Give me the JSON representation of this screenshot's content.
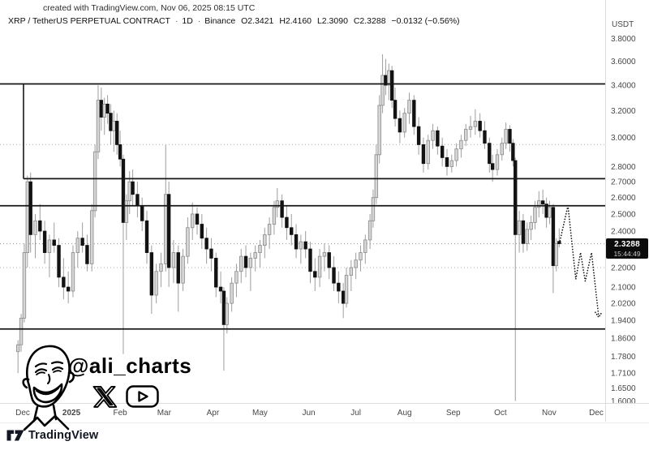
{
  "header": {
    "credit": "created with TradingView.com, Nov 06, 2025 08:15 UTC",
    "symbol": "XRP / TetherUS PERPETUAL CONTRACT",
    "sep": "·",
    "interval": "1D",
    "exchange": "Binance",
    "open": "O2.3421",
    "high": "H2.4160",
    "low": "L2.3090",
    "close": "C2.3288",
    "change": "−0.0132 (−0.56%)"
  },
  "price_axis": {
    "currency": "USDT",
    "ticks": [
      "3.8000",
      "3.6000",
      "3.4000",
      "3.2000",
      "3.0000",
      "2.8000",
      "2.7000",
      "2.6000",
      "2.5000",
      "2.4000",
      "2.2000",
      "2.1000",
      "2.0200",
      "1.9400",
      "1.8600",
      "1.7800",
      "1.7100",
      "1.6500",
      "1.6000"
    ],
    "last_price_label": "2.3288",
    "countdown": "15:44:49"
  },
  "time_axis": {
    "labels": [
      {
        "text": "Dec",
        "day": 0,
        "bold": false
      },
      {
        "text": "2025",
        "day": 31,
        "bold": true
      },
      {
        "text": "Feb",
        "day": 62,
        "bold": false
      },
      {
        "text": "Mar",
        "day": 90,
        "bold": false
      },
      {
        "text": "Apr",
        "day": 121,
        "bold": false
      },
      {
        "text": "May",
        "day": 151,
        "bold": false
      },
      {
        "text": "Jun",
        "day": 182,
        "bold": false
      },
      {
        "text": "Jul",
        "day": 212,
        "bold": false
      },
      {
        "text": "Aug",
        "day": 243,
        "bold": false
      },
      {
        "text": "Sep",
        "day": 274,
        "bold": false
      },
      {
        "text": "Oct",
        "day": 304,
        "bold": false
      },
      {
        "text": "Nov",
        "day": 335,
        "bold": false
      },
      {
        "text": "Dec",
        "day": 365,
        "bold": false
      }
    ]
  },
  "watermark": {
    "handle": "@ali_charts"
  },
  "brand": {
    "logo_text": "TradingView"
  },
  "colors": {
    "up_fill": "#d6d6d6",
    "up_stroke": "#8a8a8a",
    "down_fill": "#121212",
    "wick": "#9e9e9e",
    "level_solid": "#161616",
    "level_dotted": "#bcbcbc",
    "current_dotted": "#9a9a9a",
    "axis_text": "#474747",
    "badge_bg": "#0b0b0b"
  },
  "chart_data": {
    "type": "candlestick",
    "title": "XRP / TetherUS PERPETUAL CONTRACT 1D (Binance)",
    "scale": "log",
    "x_unit": "days since 2024-12-01",
    "visible_price_range": [
      1.55,
      3.85
    ],
    "last_close": 2.3288,
    "candles": [
      [
        -3,
        1.8,
        1.85,
        1.71,
        1.83
      ],
      [
        -1,
        1.83,
        1.97,
        1.8,
        1.95
      ],
      [
        1,
        1.95,
        2.33,
        1.93,
        2.28
      ],
      [
        3,
        2.28,
        2.74,
        2.2,
        2.7
      ],
      [
        5,
        2.7,
        2.76,
        2.28,
        2.38
      ],
      [
        8,
        2.38,
        2.5,
        2.25,
        2.46
      ],
      [
        11,
        2.46,
        2.56,
        2.35,
        2.4
      ],
      [
        14,
        2.4,
        2.46,
        2.22,
        2.28
      ],
      [
        17,
        2.28,
        2.38,
        2.15,
        2.35
      ],
      [
        20,
        2.35,
        2.45,
        2.28,
        2.32
      ],
      [
        23,
        2.32,
        2.36,
        2.1,
        2.15
      ],
      [
        26,
        2.15,
        2.25,
        2.04,
        2.1
      ],
      [
        29,
        2.1,
        2.18,
        2.02,
        2.08
      ],
      [
        32,
        2.08,
        2.32,
        2.05,
        2.28
      ],
      [
        35,
        2.28,
        2.4,
        2.2,
        2.36
      ],
      [
        38,
        2.36,
        2.45,
        2.28,
        2.32
      ],
      [
        41,
        2.32,
        2.38,
        2.18,
        2.22
      ],
      [
        44,
        2.22,
        2.56,
        2.18,
        2.52
      ],
      [
        46,
        2.52,
        2.95,
        2.48,
        2.9
      ],
      [
        48,
        2.9,
        3.4,
        2.85,
        3.28
      ],
      [
        50,
        3.28,
        3.38,
        3.05,
        3.15
      ],
      [
        52,
        3.15,
        3.3,
        3.02,
        3.25
      ],
      [
        54,
        3.25,
        3.32,
        3.1,
        3.18
      ],
      [
        56,
        3.18,
        3.25,
        2.95,
        3.05
      ],
      [
        58,
        3.05,
        3.2,
        2.9,
        3.12
      ],
      [
        60,
        3.12,
        3.18,
        2.88,
        2.95
      ],
      [
        62,
        2.95,
        3.05,
        2.8,
        2.85
      ],
      [
        64,
        2.85,
        2.88,
        1.79,
        2.45
      ],
      [
        66,
        2.45,
        2.62,
        2.35,
        2.58
      ],
      [
        68,
        2.58,
        2.77,
        2.5,
        2.7
      ],
      [
        70,
        2.7,
        2.78,
        2.55,
        2.62
      ],
      [
        73,
        2.62,
        2.7,
        2.48,
        2.55
      ],
      [
        76,
        2.55,
        2.6,
        2.4,
        2.46
      ],
      [
        79,
        2.46,
        2.52,
        2.22,
        2.28
      ],
      [
        82,
        2.28,
        2.32,
        1.97,
        2.06
      ],
      [
        85,
        2.06,
        2.22,
        2.02,
        2.18
      ],
      [
        88,
        2.18,
        2.28,
        2.1,
        2.22
      ],
      [
        91,
        2.22,
        2.95,
        2.18,
        2.62
      ],
      [
        93,
        2.62,
        2.7,
        2.1,
        2.2
      ],
      [
        96,
        2.2,
        2.35,
        2.12,
        2.28
      ],
      [
        99,
        2.28,
        2.32,
        1.98,
        2.12
      ],
      [
        102,
        2.12,
        2.3,
        2.08,
        2.26
      ],
      [
        105,
        2.26,
        2.48,
        2.22,
        2.42
      ],
      [
        108,
        2.42,
        2.57,
        2.35,
        2.5
      ],
      [
        111,
        2.5,
        2.54,
        2.38,
        2.44
      ],
      [
        114,
        2.44,
        2.5,
        2.3,
        2.36
      ],
      [
        117,
        2.36,
        2.42,
        2.22,
        2.3
      ],
      [
        120,
        2.3,
        2.36,
        2.18,
        2.25
      ],
      [
        123,
        2.25,
        2.28,
        2.05,
        2.1
      ],
      [
        126,
        2.1,
        2.18,
        2.02,
        2.08
      ],
      [
        128,
        2.08,
        2.1,
        1.72,
        1.92
      ],
      [
        130,
        1.92,
        2.05,
        1.88,
        2.02
      ],
      [
        133,
        2.02,
        2.15,
        1.98,
        2.12
      ],
      [
        136,
        2.12,
        2.22,
        2.05,
        2.18
      ],
      [
        139,
        2.18,
        2.3,
        2.12,
        2.26
      ],
      [
        142,
        2.26,
        2.32,
        2.15,
        2.2
      ],
      [
        145,
        2.2,
        2.28,
        2.08,
        2.25
      ],
      [
        148,
        2.25,
        2.32,
        2.18,
        2.28
      ],
      [
        151,
        2.28,
        2.35,
        2.2,
        2.32
      ],
      [
        154,
        2.32,
        2.42,
        2.25,
        2.38
      ],
      [
        157,
        2.38,
        2.48,
        2.3,
        2.44
      ],
      [
        160,
        2.44,
        2.58,
        2.38,
        2.54
      ],
      [
        162,
        2.54,
        2.66,
        2.48,
        2.58
      ],
      [
        165,
        2.58,
        2.62,
        2.42,
        2.48
      ],
      [
        168,
        2.48,
        2.55,
        2.35,
        2.42
      ],
      [
        171,
        2.42,
        2.5,
        2.32,
        2.38
      ],
      [
        174,
        2.38,
        2.44,
        2.25,
        2.3
      ],
      [
        177,
        2.3,
        2.38,
        2.22,
        2.34
      ],
      [
        180,
        2.34,
        2.4,
        2.25,
        2.3
      ],
      [
        183,
        2.3,
        2.34,
        2.12,
        2.18
      ],
      [
        186,
        2.18,
        2.25,
        2.08,
        2.15
      ],
      [
        189,
        2.15,
        2.3,
        2.1,
        2.26
      ],
      [
        192,
        2.26,
        2.33,
        2.18,
        2.28
      ],
      [
        195,
        2.28,
        2.32,
        2.14,
        2.2
      ],
      [
        198,
        2.2,
        2.26,
        2.08,
        2.12
      ],
      [
        201,
        2.12,
        2.18,
        2.02,
        2.08
      ],
      [
        204,
        2.08,
        2.12,
        1.95,
        2.02
      ],
      [
        206,
        2.02,
        2.2,
        2.0,
        2.16
      ],
      [
        209,
        2.16,
        2.24,
        2.08,
        2.2
      ],
      [
        212,
        2.2,
        2.28,
        2.14,
        2.24
      ],
      [
        215,
        2.24,
        2.32,
        2.18,
        2.28
      ],
      [
        218,
        2.28,
        2.38,
        2.22,
        2.35
      ],
      [
        221,
        2.35,
        2.5,
        2.3,
        2.46
      ],
      [
        223,
        2.46,
        2.65,
        2.42,
        2.6
      ],
      [
        225,
        2.6,
        2.95,
        2.56,
        2.88
      ],
      [
        227,
        2.88,
        3.32,
        2.82,
        3.24
      ],
      [
        229,
        3.24,
        3.66,
        3.18,
        3.48
      ],
      [
        231,
        3.48,
        3.62,
        3.32,
        3.4
      ],
      [
        233,
        3.4,
        3.58,
        3.28,
        3.52
      ],
      [
        235,
        3.52,
        3.56,
        3.22,
        3.28
      ],
      [
        237,
        3.28,
        3.38,
        3.08,
        3.14
      ],
      [
        240,
        3.14,
        3.2,
        2.96,
        3.04
      ],
      [
        243,
        3.04,
        3.22,
        3.0,
        3.18
      ],
      [
        246,
        3.18,
        3.34,
        3.1,
        3.28
      ],
      [
        249,
        3.28,
        3.32,
        3.02,
        3.08
      ],
      [
        252,
        3.08,
        3.15,
        2.88,
        2.95
      ],
      [
        255,
        2.95,
        3.0,
        2.76,
        2.82
      ],
      [
        258,
        2.82,
        3.02,
        2.78,
        2.98
      ],
      [
        261,
        2.98,
        3.1,
        2.92,
        3.05
      ],
      [
        264,
        3.05,
        3.08,
        2.88,
        2.94
      ],
      [
        267,
        2.94,
        3.0,
        2.8,
        2.86
      ],
      [
        270,
        2.86,
        2.92,
        2.74,
        2.8
      ],
      [
        273,
        2.8,
        2.88,
        2.76,
        2.84
      ],
      [
        276,
        2.84,
        2.96,
        2.8,
        2.92
      ],
      [
        279,
        2.92,
        3.02,
        2.86,
        2.98
      ],
      [
        282,
        2.98,
        3.1,
        2.94,
        3.06
      ],
      [
        285,
        3.06,
        3.16,
        3.0,
        3.08
      ],
      [
        288,
        3.08,
        3.21,
        3.02,
        3.12
      ],
      [
        291,
        3.12,
        3.18,
        3.0,
        3.05
      ],
      [
        294,
        3.05,
        3.12,
        2.92,
        2.96
      ],
      [
        297,
        2.96,
        3.0,
        2.76,
        2.82
      ],
      [
        299,
        2.82,
        2.88,
        2.7,
        2.78
      ],
      [
        302,
        2.78,
        2.92,
        2.74,
        2.88
      ],
      [
        305,
        2.88,
        3.0,
        2.84,
        2.96
      ],
      [
        307.5,
        2.96,
        3.11,
        2.92,
        3.06
      ],
      [
        310,
        3.06,
        3.09,
        2.9,
        2.96
      ],
      [
        312,
        2.96,
        2.99,
        2.8,
        2.84
      ],
      [
        313.5,
        2.84,
        2.86,
        1.6,
        2.38
      ],
      [
        316,
        2.38,
        2.52,
        2.28,
        2.46
      ],
      [
        318.5,
        2.46,
        2.5,
        2.28,
        2.33
      ],
      [
        321,
        2.33,
        2.45,
        2.29,
        2.41
      ],
      [
        323.5,
        2.41,
        2.49,
        2.35,
        2.45
      ],
      [
        326,
        2.45,
        2.58,
        2.41,
        2.54
      ],
      [
        328.5,
        2.54,
        2.64,
        2.48,
        2.58
      ],
      [
        331,
        2.58,
        2.65,
        2.5,
        2.56
      ],
      [
        333.3,
        2.56,
        2.6,
        2.42,
        2.48
      ],
      [
        335.3,
        2.48,
        2.58,
        2.44,
        2.54
      ],
      [
        337.6,
        2.54,
        2.56,
        2.07,
        2.21
      ],
      [
        339.6,
        2.21,
        2.36,
        2.18,
        2.33
      ],
      [
        341.4,
        2.342,
        2.416,
        2.309,
        2.329
      ]
    ],
    "levels": [
      {
        "price": 3.41,
        "style": "solid",
        "from_day": -16
      },
      {
        "price": 2.72,
        "style": "solid",
        "from_day": 0.5
      },
      {
        "price": 2.55,
        "style": "solid",
        "from_day": -16
      },
      {
        "price": 1.9,
        "style": "solid",
        "from_day": -16
      },
      {
        "price": 2.95,
        "style": "dotted",
        "from_day": -16
      },
      {
        "price": 2.2,
        "style": "dotted",
        "from_day": -16
      }
    ],
    "range_connector": {
      "day": 0.5,
      "top_price": 3.41,
      "bottom_price": 2.72
    },
    "projection_dotted_path": [
      [
        341.5,
        2.33
      ],
      [
        347,
        2.55
      ],
      [
        352,
        2.14
      ],
      [
        355,
        2.28
      ],
      [
        358,
        2.13
      ],
      [
        362,
        2.28
      ],
      [
        366.5,
        1.96
      ]
    ]
  }
}
